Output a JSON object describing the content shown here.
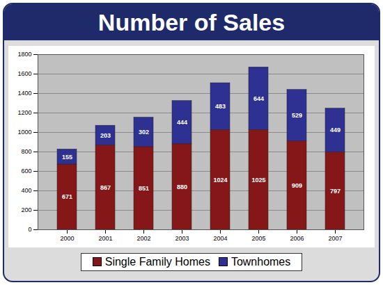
{
  "chart_data": {
    "type": "bar",
    "title": "Number of Sales",
    "categories": [
      "2000",
      "2001",
      "2002",
      "2003",
      "2004",
      "2005",
      "2006",
      "2007"
    ],
    "series": [
      {
        "name": "Single Family Homes",
        "color": "#861719",
        "values": [
          671,
          867,
          851,
          880,
          1024,
          1025,
          909,
          797
        ]
      },
      {
        "name": "Townhomes",
        "color": "#2e3192",
        "values": [
          155,
          203,
          302,
          444,
          483,
          644,
          529,
          449
        ]
      }
    ],
    "stacked": true,
    "data_labels": true,
    "ylim": [
      0,
      1800
    ],
    "yticks": [
      0,
      200,
      400,
      600,
      800,
      1000,
      1200,
      1400,
      1600,
      1800
    ],
    "grid": true,
    "legend": "bottom"
  }
}
